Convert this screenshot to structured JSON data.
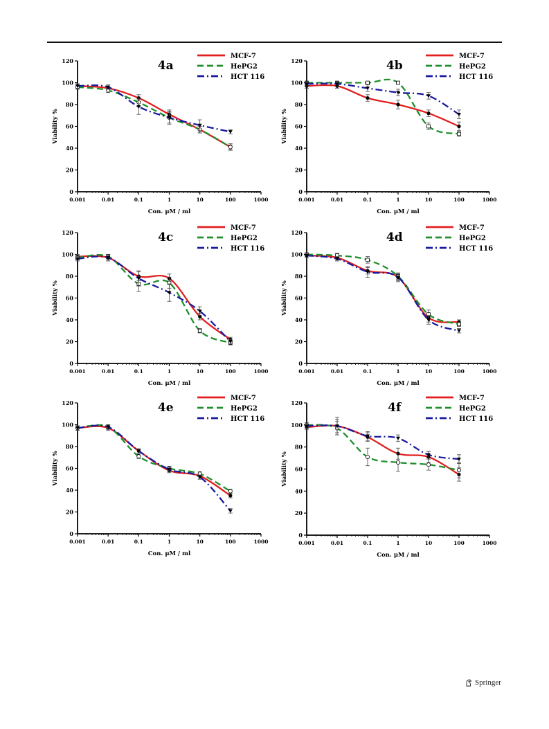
{
  "footer": {
    "publisher": "Springer",
    "logo_icon": "springer-horse-icon"
  },
  "style": {
    "series_colors": {
      "MCF-7": "#e02020",
      "HePG2": "#1e8f2a",
      "HCT 116": "#1a1a9e"
    },
    "series_dash": {
      "MCF-7": "solid",
      "HePG2": "dashed",
      "HCT 116": "dash-dot"
    }
  },
  "chart_data": [
    {
      "type": "line",
      "title": "4a",
      "xscale": "log",
      "xlim": [
        0.001,
        1000
      ],
      "ylim": [
        0,
        120
      ],
      "xlabel": "Con. μM / ml",
      "ylabel": "Viability %",
      "xticks": [
        "0.001",
        "0.01",
        "0.1",
        "1",
        "10",
        "100",
        "1000"
      ],
      "yticks": [
        "0",
        "20",
        "40",
        "60",
        "80",
        "100",
        "120"
      ],
      "legend": "top-right",
      "series": [
        {
          "name": "MCF-7",
          "x": [
            0.001,
            0.01,
            0.1,
            1,
            10,
            100
          ],
          "y": [
            97,
            95,
            86,
            71,
            57,
            41
          ],
          "err": [
            2,
            2,
            3,
            4,
            3,
            2
          ],
          "marker": "circle-filled"
        },
        {
          "name": "HePG2",
          "x": [
            0.001,
            0.01,
            0.1,
            1,
            10,
            100
          ],
          "y": [
            96,
            93,
            82,
            68,
            57,
            41
          ],
          "err": [
            2,
            2,
            4,
            5,
            3,
            3
          ],
          "marker": "circle-open"
        },
        {
          "name": "HCT 116",
          "x": [
            0.001,
            0.01,
            0.1,
            1,
            10,
            100
          ],
          "y": [
            97,
            96,
            78,
            68,
            61,
            55
          ],
          "err": [
            2,
            2,
            7,
            6,
            5,
            2
          ],
          "marker": "triangle-filled"
        }
      ]
    },
    {
      "type": "line",
      "title": "4b",
      "xscale": "log",
      "xlim": [
        0.001,
        1000
      ],
      "ylim": [
        0,
        120
      ],
      "xlabel": "Con. μM / ml",
      "ylabel": "Viability %",
      "xticks": [
        "0.001",
        "0.01",
        "0.1",
        "1",
        "10",
        "100",
        "1000"
      ],
      "yticks": [
        "0",
        "20",
        "40",
        "60",
        "80",
        "100",
        "120"
      ],
      "legend": "top-right",
      "series": [
        {
          "name": "MCF-7",
          "x": [
            0.001,
            0.01,
            0.1,
            1,
            10,
            100
          ],
          "y": [
            97,
            97,
            86,
            80,
            72,
            60
          ],
          "err": [
            2,
            2,
            3,
            4,
            3,
            4
          ],
          "marker": "circle-filled"
        },
        {
          "name": "HePG2",
          "x": [
            0.001,
            0.01,
            0.1,
            1,
            10,
            100
          ],
          "y": [
            100,
            100,
            100,
            100,
            60,
            53
          ],
          "err": [
            1,
            1,
            1,
            1,
            3,
            2
          ],
          "marker": "square-open"
        },
        {
          "name": "HCT 116",
          "x": [
            0.001,
            0.01,
            0.1,
            1,
            10,
            100
          ],
          "y": [
            99,
            99,
            95,
            91,
            88,
            71
          ],
          "err": [
            2,
            2,
            3,
            3,
            3,
            4
          ],
          "marker": "triangle-filled"
        }
      ]
    },
    {
      "type": "line",
      "title": "4c",
      "xscale": "log",
      "xlim": [
        0.001,
        1000
      ],
      "ylim": [
        0,
        120
      ],
      "xlabel": "Con. μM / ml",
      "ylabel": "Viability %",
      "xticks": [
        "0.001",
        "0.01",
        "0.1",
        "1",
        "10",
        "100",
        "1000"
      ],
      "yticks": [
        "0",
        "20",
        "40",
        "60",
        "80",
        "100",
        "120"
      ],
      "legend": "top-right",
      "series": [
        {
          "name": "MCF-7",
          "x": [
            0.001,
            0.01,
            0.1,
            1,
            10,
            100
          ],
          "y": [
            98,
            97,
            80,
            78,
            43,
            22
          ],
          "err": [
            2,
            3,
            4,
            4,
            3,
            2
          ],
          "marker": "circle-filled"
        },
        {
          "name": "HePG2",
          "x": [
            0.001,
            0.01,
            0.1,
            1,
            10,
            100
          ],
          "y": [
            97,
            98,
            73,
            74,
            30,
            19
          ],
          "err": [
            2,
            2,
            7,
            5,
            2,
            2
          ],
          "marker": "square-open"
        },
        {
          "name": "HCT 116",
          "x": [
            0.001,
            0.01,
            0.1,
            1,
            10,
            100
          ],
          "y": [
            96,
            97,
            78,
            65,
            48,
            20
          ],
          "err": [
            2,
            2,
            7,
            8,
            4,
            2
          ],
          "marker": "triangle-filled"
        }
      ]
    },
    {
      "type": "line",
      "title": "4d",
      "xscale": "log",
      "xlim": [
        0.001,
        1000
      ],
      "ylim": [
        0,
        120
      ],
      "xlabel": "Con. μM / ml",
      "ylabel": "Viability %",
      "xticks": [
        "0.001",
        "0.01",
        "0.1",
        "1",
        "10",
        "100",
        "1000"
      ],
      "yticks": [
        "0",
        "20",
        "40",
        "60",
        "80",
        "100",
        "120"
      ],
      "legend": "top-right",
      "series": [
        {
          "name": "MCF-7",
          "x": [
            0.001,
            0.01,
            0.1,
            1,
            10,
            100
          ],
          "y": [
            99,
            97,
            85,
            79,
            42,
            38
          ],
          "err": [
            2,
            2,
            3,
            3,
            4,
            2
          ],
          "marker": "circle-filled"
        },
        {
          "name": "HePG2",
          "x": [
            0.001,
            0.01,
            0.1,
            1,
            10,
            100
          ],
          "y": [
            100,
            99,
            95,
            80,
            45,
            36
          ],
          "err": [
            1,
            2,
            3,
            3,
            4,
            2
          ],
          "marker": "square-open"
        },
        {
          "name": "HCT 116",
          "x": [
            0.001,
            0.01,
            0.1,
            1,
            10,
            100
          ],
          "y": [
            99,
            96,
            84,
            79,
            40,
            30
          ],
          "err": [
            2,
            2,
            5,
            4,
            4,
            2
          ],
          "marker": "triangle-filled"
        }
      ]
    },
    {
      "type": "line",
      "title": "4e",
      "xscale": "log",
      "xlim": [
        0.001,
        1000
      ],
      "ylim": [
        0,
        120
      ],
      "xlabel": "Con. μM / ml",
      "ylabel": "Viability %",
      "xticks": [
        "0.001",
        "0.01",
        "0.1",
        "1",
        "10",
        "100",
        "1000"
      ],
      "yticks": [
        "0",
        "20",
        "40",
        "60",
        "80",
        "100",
        "120"
      ],
      "legend": "top-right",
      "series": [
        {
          "name": "MCF-7",
          "x": [
            0.001,
            0.01,
            0.1,
            1,
            10,
            100
          ],
          "y": [
            97,
            97,
            76,
            58,
            53,
            35
          ],
          "err": [
            2,
            2,
            2,
            2,
            2,
            2
          ],
          "marker": "circle-filled"
        },
        {
          "name": "HePG2",
          "x": [
            0.001,
            0.01,
            0.1,
            1,
            10,
            100
          ],
          "y": [
            97,
            98,
            71,
            60,
            55,
            39
          ],
          "err": [
            2,
            2,
            2,
            2,
            2,
            2
          ],
          "marker": "circle-open"
        },
        {
          "name": "HCT 116",
          "x": [
            0.001,
            0.01,
            0.1,
            1,
            10,
            100
          ],
          "y": [
            97,
            98,
            76,
            59,
            52,
            21
          ],
          "err": [
            2,
            2,
            2,
            2,
            2,
            2
          ],
          "marker": "triangle-filled"
        }
      ]
    },
    {
      "type": "line",
      "title": "4f",
      "xscale": "log",
      "xlim": [
        0.001,
        1000
      ],
      "ylim": [
        0,
        120
      ],
      "xlabel": "Con. μM / ml",
      "ylabel": "Viability %",
      "xticks": [
        "0.001",
        "0.01",
        "0.1",
        "1",
        "10",
        "100",
        "1000"
      ],
      "yticks": [
        "0",
        "20",
        "40",
        "60",
        "80",
        "100",
        "120"
      ],
      "legend": "top-right",
      "series": [
        {
          "name": "MCF-7",
          "x": [
            0.001,
            0.01,
            0.1,
            1,
            10,
            100
          ],
          "y": [
            98,
            99,
            89,
            74,
            71,
            55
          ],
          "err": [
            2,
            8,
            4,
            5,
            5,
            6
          ],
          "marker": "circle-filled"
        },
        {
          "name": "HePG2",
          "x": [
            0.001,
            0.01,
            0.1,
            1,
            10,
            100
          ],
          "y": [
            100,
            97,
            71,
            66,
            64,
            59
          ],
          "err": [
            2,
            6,
            8,
            8,
            5,
            7
          ],
          "marker": "circle-open"
        },
        {
          "name": "HCT 116",
          "x": [
            0.001,
            0.01,
            0.1,
            1,
            10,
            100
          ],
          "y": [
            99,
            99,
            90,
            88,
            73,
            69
          ],
          "err": [
            2,
            6,
            4,
            3,
            3,
            4
          ],
          "marker": "triangle-filled"
        }
      ]
    }
  ]
}
